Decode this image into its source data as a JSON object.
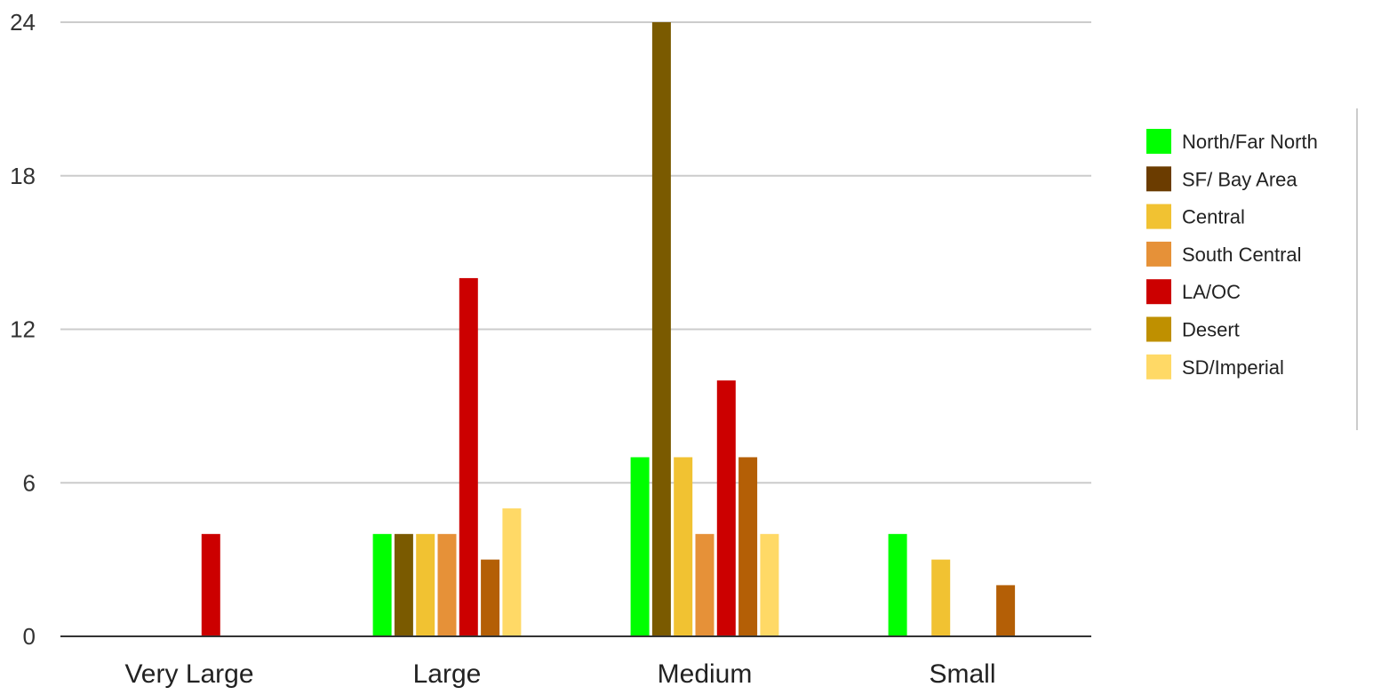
{
  "chart_data": {
    "type": "bar",
    "title": "",
    "xlabel": "",
    "ylabel": "",
    "categories": [
      "Very Large",
      "Large",
      "Medium",
      "Small"
    ],
    "ylim": [
      0,
      24
    ],
    "yticks": [
      "0",
      "6",
      "12",
      "18",
      "24"
    ],
    "grid": true,
    "legend_position": "right",
    "series": [
      {
        "name": "North/Far North",
        "color": "#00ff00",
        "values": [
          0,
          4,
          7,
          4
        ]
      },
      {
        "name": "SF/ Bay Area",
        "color": "#7a5a00",
        "swatch_color": "#6b3c00",
        "values": [
          0,
          4,
          24,
          0
        ]
      },
      {
        "name": "Central",
        "color": "#f1c232",
        "values": [
          0,
          4,
          7,
          3
        ]
      },
      {
        "name": "South Central",
        "color": "#e69138",
        "values": [
          0,
          4,
          4,
          0
        ]
      },
      {
        "name": "LA/OC",
        "color": "#cc0000",
        "values": [
          4,
          14,
          10,
          0
        ]
      },
      {
        "name": "Desert",
        "color": "#b45f06",
        "swatch_color": "#bf9000",
        "values": [
          0,
          3,
          7,
          2
        ]
      },
      {
        "name": "SD/Imperial",
        "color": "#ffd966",
        "values": [
          0,
          5,
          4,
          0
        ]
      }
    ]
  }
}
